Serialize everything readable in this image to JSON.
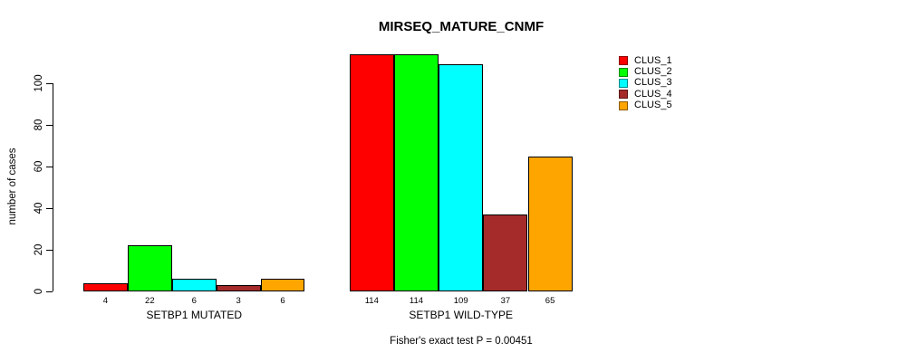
{
  "chart_data": {
    "type": "bar",
    "title": "MIRSEQ_MATURE_CNMF",
    "xlabel": "",
    "ylabel": "number of cases",
    "ylim": [
      0,
      115
    ],
    "y_ticks": [
      0,
      20,
      40,
      60,
      80,
      100
    ],
    "grid": "off",
    "legend_position": "top-right",
    "categories": [
      "SETBP1 MUTATED",
      "SETBP1 WILD-TYPE"
    ],
    "series": [
      {
        "name": "CLUS_1",
        "color": "#FF0000",
        "values": [
          4,
          114
        ]
      },
      {
        "name": "CLUS_2",
        "color": "#00FF00",
        "values": [
          22,
          114
        ]
      },
      {
        "name": "CLUS_3",
        "color": "#00FFFF",
        "values": [
          6,
          109
        ]
      },
      {
        "name": "CLUS_4",
        "color": "#A52A2A",
        "values": [
          3,
          37
        ]
      },
      {
        "name": "CLUS_5",
        "color": "#FFA500",
        "values": [
          6,
          65
        ]
      }
    ],
    "bar_value_labels": [
      [
        4,
        22,
        6,
        3,
        6
      ],
      [
        114,
        114,
        109,
        37,
        65
      ]
    ],
    "annotation": "Fisher's exact test P = 0.00451"
  }
}
